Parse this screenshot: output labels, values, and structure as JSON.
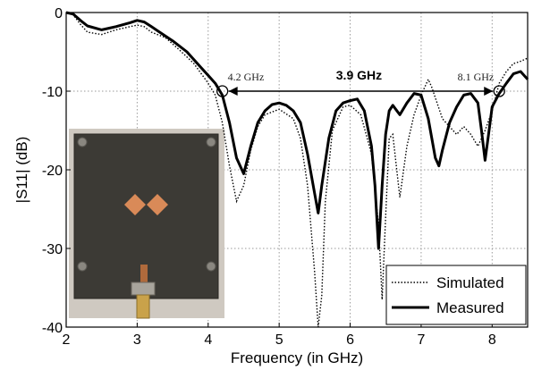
{
  "chart_data": {
    "type": "line",
    "xlabel": "Frequency (in GHz)",
    "ylabel": "|S11| (dB)",
    "xlim": [
      2,
      8.5
    ],
    "ylim": [
      -40,
      0
    ],
    "xticks": [
      2,
      3,
      4,
      5,
      6,
      7,
      8
    ],
    "yticks": [
      0,
      -10,
      -20,
      -30,
      -40
    ],
    "grid": true,
    "legend_position": "bottom-right",
    "series": [
      {
        "name": "Simulated",
        "style": "dotted",
        "color": "#000000",
        "points": [
          [
            2.0,
            0
          ],
          [
            2.1,
            -0.3
          ],
          [
            2.2,
            -1.5
          ],
          [
            2.3,
            -2.5
          ],
          [
            2.5,
            -2.8
          ],
          [
            2.7,
            -2.2
          ],
          [
            2.9,
            -1.8
          ],
          [
            3.0,
            -1.6
          ],
          [
            3.1,
            -1.8
          ],
          [
            3.2,
            -2.5
          ],
          [
            3.4,
            -3.2
          ],
          [
            3.6,
            -4.8
          ],
          [
            3.8,
            -6.5
          ],
          [
            4.0,
            -9.0
          ],
          [
            4.1,
            -10.5
          ],
          [
            4.2,
            -14.0
          ],
          [
            4.3,
            -19.5
          ],
          [
            4.4,
            -24.0
          ],
          [
            4.5,
            -22.0
          ],
          [
            4.6,
            -17.5
          ],
          [
            4.7,
            -14.5
          ],
          [
            4.8,
            -13.0
          ],
          [
            5.0,
            -12.3
          ],
          [
            5.2,
            -13.5
          ],
          [
            5.3,
            -16.0
          ],
          [
            5.4,
            -22.0
          ],
          [
            5.5,
            -33.0
          ],
          [
            5.55,
            -40.0
          ],
          [
            5.6,
            -36.0
          ],
          [
            5.65,
            -24.0
          ],
          [
            5.75,
            -15.0
          ],
          [
            5.9,
            -12.0
          ],
          [
            6.0,
            -11.8
          ],
          [
            6.15,
            -13.0
          ],
          [
            6.3,
            -18.0
          ],
          [
            6.4,
            -27.0
          ],
          [
            6.45,
            -36.5
          ],
          [
            6.5,
            -26.0
          ],
          [
            6.55,
            -16.0
          ],
          [
            6.6,
            -15.5
          ],
          [
            6.7,
            -23.5
          ],
          [
            6.8,
            -17.0
          ],
          [
            6.9,
            -13.0
          ],
          [
            7.0,
            -10.5
          ],
          [
            7.1,
            -8.5
          ],
          [
            7.15,
            -9.5
          ],
          [
            7.3,
            -13.5
          ],
          [
            7.5,
            -15.5
          ],
          [
            7.6,
            -14.5
          ],
          [
            7.7,
            -15.5
          ],
          [
            7.8,
            -17.0
          ],
          [
            7.9,
            -15.0
          ],
          [
            8.0,
            -12.5
          ],
          [
            8.1,
            -9.0
          ],
          [
            8.2,
            -7.5
          ],
          [
            8.3,
            -6.5
          ],
          [
            8.4,
            -6.2
          ],
          [
            8.5,
            -5.8
          ]
        ]
      },
      {
        "name": "Measured",
        "style": "solid",
        "color": "#000000",
        "points": [
          [
            2.0,
            0
          ],
          [
            2.1,
            -0.2
          ],
          [
            2.2,
            -1.0
          ],
          [
            2.3,
            -1.7
          ],
          [
            2.5,
            -2.2
          ],
          [
            2.7,
            -1.8
          ],
          [
            2.9,
            -1.3
          ],
          [
            3.0,
            -1.0
          ],
          [
            3.1,
            -1.2
          ],
          [
            3.2,
            -1.8
          ],
          [
            3.3,
            -2.4
          ],
          [
            3.5,
            -3.6
          ],
          [
            3.7,
            -5.0
          ],
          [
            3.9,
            -7.0
          ],
          [
            4.0,
            -8.0
          ],
          [
            4.1,
            -9.0
          ],
          [
            4.2,
            -10.5
          ],
          [
            4.3,
            -14.0
          ],
          [
            4.4,
            -18.5
          ],
          [
            4.5,
            -20.5
          ],
          [
            4.6,
            -17.0
          ],
          [
            4.7,
            -14.0
          ],
          [
            4.8,
            -12.5
          ],
          [
            4.9,
            -11.7
          ],
          [
            5.0,
            -11.5
          ],
          [
            5.1,
            -11.8
          ],
          [
            5.2,
            -12.5
          ],
          [
            5.3,
            -14.0
          ],
          [
            5.4,
            -18.0
          ],
          [
            5.5,
            -23.0
          ],
          [
            5.55,
            -25.5
          ],
          [
            5.6,
            -22.0
          ],
          [
            5.7,
            -16.0
          ],
          [
            5.8,
            -12.5
          ],
          [
            5.9,
            -11.5
          ],
          [
            6.0,
            -11.2
          ],
          [
            6.1,
            -11.0
          ],
          [
            6.2,
            -12.5
          ],
          [
            6.3,
            -17.0
          ],
          [
            6.35,
            -22.0
          ],
          [
            6.4,
            -30.0
          ],
          [
            6.45,
            -22.0
          ],
          [
            6.5,
            -15.5
          ],
          [
            6.55,
            -12.5
          ],
          [
            6.6,
            -11.8
          ],
          [
            6.7,
            -13.0
          ],
          [
            6.8,
            -11.5
          ],
          [
            6.9,
            -10.3
          ],
          [
            7.0,
            -10.5
          ],
          [
            7.1,
            -13.5
          ],
          [
            7.2,
            -18.5
          ],
          [
            7.25,
            -19.5
          ],
          [
            7.3,
            -17.5
          ],
          [
            7.4,
            -14.0
          ],
          [
            7.5,
            -12.0
          ],
          [
            7.6,
            -10.5
          ],
          [
            7.7,
            -10.3
          ],
          [
            7.8,
            -11.5
          ],
          [
            7.85,
            -15.0
          ],
          [
            7.9,
            -18.8
          ],
          [
            7.95,
            -15.5
          ],
          [
            8.0,
            -12.0
          ],
          [
            8.1,
            -10.3
          ],
          [
            8.2,
            -9.0
          ],
          [
            8.3,
            -7.8
          ],
          [
            8.4,
            -7.5
          ],
          [
            8.5,
            -8.5
          ]
        ]
      }
    ],
    "annotations": [
      {
        "text": "4.2 GHz",
        "x": 4.2,
        "y": -10
      },
      {
        "text": "8.1 GHz",
        "x": 8.1,
        "y": -10
      },
      {
        "text": "3.9 GHz",
        "from": 4.2,
        "to": 8.1,
        "y": -10
      }
    ]
  },
  "inset_photo": {
    "board_color": "#3c3a35",
    "patch_color": "#d98a58",
    "background_color": "#cfc9c1"
  }
}
